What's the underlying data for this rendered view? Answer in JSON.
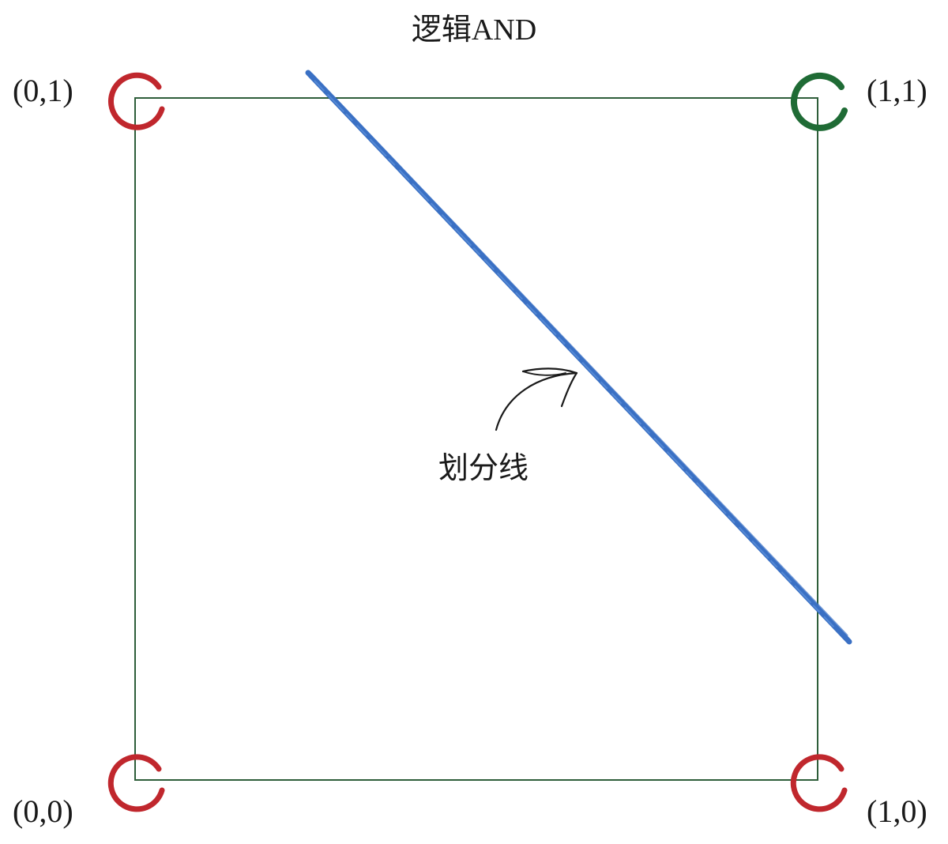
{
  "title": "逻辑AND",
  "points": [
    {
      "label": "(0,0)",
      "x": 0,
      "y": 0,
      "output": 0
    },
    {
      "label": "(0,1)",
      "x": 0,
      "y": 1,
      "output": 0
    },
    {
      "label": "(1,0)",
      "x": 1,
      "y": 0,
      "output": 0
    },
    {
      "label": "(1,1)",
      "x": 1,
      "y": 1,
      "output": 1
    }
  ],
  "annotation": {
    "label": "划分线"
  },
  "colors": {
    "square": "#2e5e3a",
    "false_point": "#c0272d",
    "true_point": "#1f6b35",
    "dividing_line": "#3a70c4",
    "text": "#1a1a1a"
  }
}
